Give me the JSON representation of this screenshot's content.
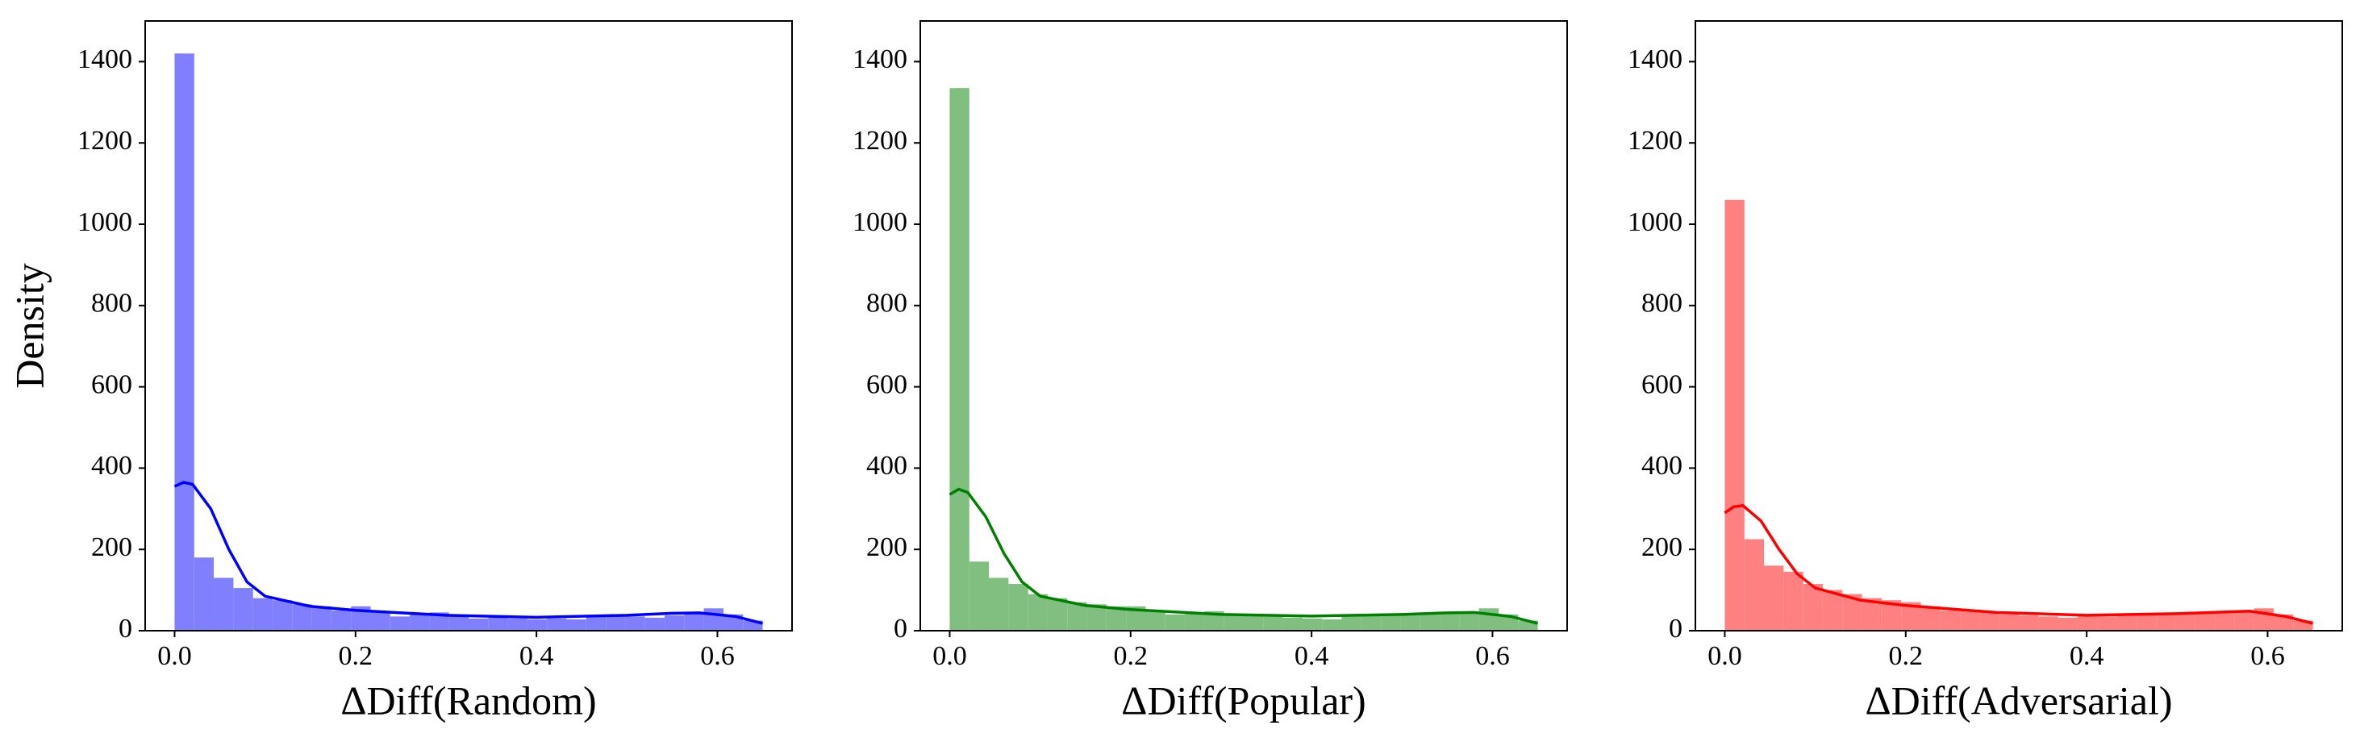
{
  "chart_data": [
    {
      "type": "histogram",
      "xlabel": "ΔDiff(Random)",
      "ylabel": "Density",
      "bins": [
        0,
        0.0217,
        0.0433,
        0.065,
        0.0867,
        0.1083,
        0.13,
        0.1517,
        0.1733,
        0.195,
        0.2167,
        0.2383,
        0.26,
        0.2817,
        0.3033,
        0.325,
        0.3467,
        0.3683,
        0.39,
        0.4117,
        0.4333,
        0.455,
        0.4767,
        0.4983,
        0.52,
        0.5417,
        0.5633,
        0.585,
        0.6067,
        0.6283,
        0.65
      ],
      "values": [
        1420,
        180,
        130,
        105,
        80,
        75,
        65,
        60,
        50,
        60,
        45,
        35,
        40,
        45,
        35,
        30,
        32,
        30,
        28,
        30,
        28,
        35,
        38,
        35,
        32,
        38,
        42,
        55,
        40,
        25
      ],
      "color": "#8080ff",
      "kde": {
        "x": [
          0,
          0.01,
          0.02,
          0.04,
          0.06,
          0.08,
          0.1,
          0.15,
          0.2,
          0.3,
          0.4,
          0.5,
          0.55,
          0.58,
          0.62,
          0.65
        ],
        "values": [
          355,
          365,
          360,
          300,
          200,
          120,
          85,
          60,
          50,
          38,
          33,
          38,
          43,
          44,
          35,
          18
        ],
        "color": "#0000ff"
      },
      "xlim": [
        -0.0325,
        0.6825
      ],
      "xticks": [
        {
          "value": 0,
          "label": "0.0"
        },
        0.2,
        0.4,
        0.6
      ],
      "ylim": [
        0,
        1500
      ],
      "yticks": [
        0,
        200,
        400,
        600,
        800,
        1000,
        1200,
        1400
      ]
    },
    {
      "type": "histogram",
      "xlabel": "ΔDiff(Popular)",
      "bins": [
        0,
        0.0217,
        0.0433,
        0.065,
        0.0867,
        0.1083,
        0.13,
        0.1517,
        0.1733,
        0.195,
        0.2167,
        0.2383,
        0.26,
        0.2817,
        0.3033,
        0.325,
        0.3467,
        0.3683,
        0.39,
        0.4117,
        0.4333,
        0.455,
        0.4767,
        0.4983,
        0.52,
        0.5417,
        0.5633,
        0.585,
        0.6067,
        0.6283,
        0.65
      ],
      "values": [
        1335,
        170,
        130,
        115,
        90,
        80,
        70,
        65,
        60,
        60,
        50,
        40,
        45,
        48,
        40,
        38,
        35,
        32,
        30,
        28,
        35,
        40,
        42,
        38,
        40,
        42,
        45,
        55,
        40,
        25
      ],
      "color": "#80bf80",
      "kde": {
        "x": [
          0,
          0.01,
          0.02,
          0.04,
          0.06,
          0.08,
          0.1,
          0.15,
          0.2,
          0.3,
          0.4,
          0.5,
          0.55,
          0.58,
          0.62,
          0.65
        ],
        "values": [
          335,
          348,
          340,
          280,
          190,
          120,
          85,
          62,
          52,
          40,
          36,
          40,
          44,
          45,
          35,
          18
        ],
        "color": "#008000"
      },
      "xlim": [
        -0.0325,
        0.6825
      ],
      "xticks": [
        {
          "value": 0,
          "label": "0.0"
        },
        0.2,
        0.4,
        0.6
      ],
      "ylim": [
        0,
        1500
      ],
      "yticks": [
        0,
        200,
        400,
        600,
        800,
        1000,
        1200,
        1400
      ]
    },
    {
      "type": "histogram",
      "xlabel": "ΔDiff(Adversarial)",
      "bins": [
        0,
        0.0217,
        0.0433,
        0.065,
        0.0867,
        0.1083,
        0.13,
        0.1517,
        0.1733,
        0.195,
        0.2167,
        0.2383,
        0.26,
        0.2817,
        0.3033,
        0.325,
        0.3467,
        0.3683,
        0.39,
        0.4117,
        0.4333,
        0.455,
        0.4767,
        0.4983,
        0.52,
        0.5417,
        0.5633,
        0.585,
        0.6067,
        0.6283,
        0.65
      ],
      "values": [
        1060,
        225,
        160,
        145,
        115,
        100,
        90,
        80,
        75,
        70,
        60,
        50,
        50,
        48,
        40,
        38,
        35,
        32,
        35,
        35,
        38,
        40,
        42,
        40,
        42,
        45,
        48,
        55,
        40,
        25
      ],
      "color": "#ff8080",
      "kde": {
        "x": [
          0,
          0.01,
          0.02,
          0.04,
          0.06,
          0.08,
          0.1,
          0.15,
          0.2,
          0.3,
          0.4,
          0.5,
          0.55,
          0.58,
          0.62,
          0.65
        ],
        "values": [
          290,
          305,
          308,
          270,
          200,
          140,
          105,
          75,
          62,
          45,
          38,
          42,
          46,
          48,
          35,
          18
        ],
        "color": "#ff0000"
      },
      "xlim": [
        -0.0325,
        0.6825
      ],
      "xticks": [
        {
          "value": 0,
          "label": "0.0"
        },
        0.2,
        0.4,
        0.6
      ],
      "ylim": [
        0,
        1500
      ],
      "yticks": [
        0,
        200,
        400,
        600,
        800,
        1000,
        1200,
        1400
      ]
    }
  ]
}
